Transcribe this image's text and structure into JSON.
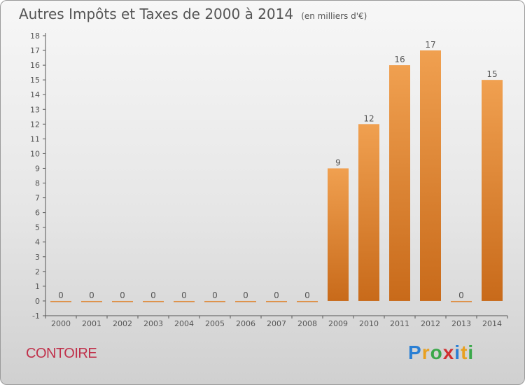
{
  "title": "Autres Impôts et Taxes de 2000 à 2014",
  "unit_note": "(en milliers d'€)",
  "commune": "CONTOIRE",
  "brand": {
    "letters": [
      "P",
      "r",
      "o",
      "x",
      "i",
      "t",
      "i"
    ],
    "colors": [
      "#2a7fd4",
      "#e8a020",
      "#3aa84a",
      "#d03030",
      "#2a7fd4",
      "#e8a020",
      "#3aa84a"
    ]
  },
  "colors": {
    "bar": "#f0a050",
    "bar_dark": "#c86a1a",
    "axis": "#555555",
    "text": "#555555",
    "commune": "#c0304a"
  },
  "chart_data": {
    "type": "bar",
    "categories": [
      "2000",
      "2001",
      "2002",
      "2003",
      "2004",
      "2005",
      "2006",
      "2007",
      "2008",
      "2009",
      "2010",
      "2011",
      "2012",
      "2013",
      "2014"
    ],
    "values": [
      0,
      0,
      0,
      0,
      0,
      0,
      0,
      0,
      0,
      9,
      12,
      16,
      17,
      0,
      15
    ],
    "data_labels": [
      "0",
      "0",
      "0",
      "0",
      "0",
      "0",
      "0",
      "0",
      "0",
      "9",
      "12",
      "16",
      "17",
      "0",
      "15"
    ],
    "y_ticks": [
      "-1",
      "0",
      "1",
      "2",
      "3",
      "4",
      "5",
      "6",
      "7",
      "8",
      "9",
      "10",
      "11",
      "12",
      "13",
      "14",
      "15",
      "16",
      "17",
      "18"
    ],
    "ylim": [
      -1,
      18
    ],
    "grid": false,
    "legend": "none"
  }
}
